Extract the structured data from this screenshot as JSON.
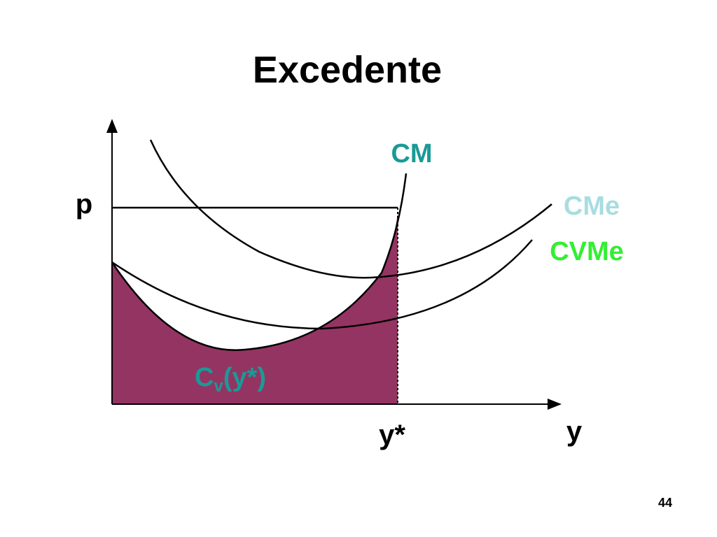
{
  "title": "Excedente",
  "curves": [
    {
      "label": "CM"
    },
    {
      "label": "CMe"
    },
    {
      "label": "CVMe"
    }
  ],
  "axes": {
    "y_label": "p",
    "x_label": "y",
    "x_marker": "y*"
  },
  "area_label": {
    "main": "C",
    "subscript": "v",
    "argument": "(y*)"
  },
  "page_number": "44"
}
